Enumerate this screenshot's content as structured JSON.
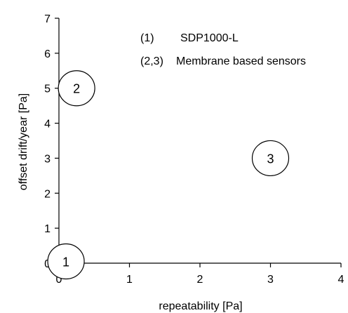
{
  "chart_data": {
    "type": "scatter",
    "title": "",
    "xlabel": "repeatability [Pa]",
    "ylabel": "offset drift/year [Pa]",
    "xlim": [
      0,
      4
    ],
    "ylim": [
      0,
      7
    ],
    "x_ticks": [
      "0",
      "1",
      "2",
      "3",
      "4"
    ],
    "y_ticks": [
      "0",
      "1",
      "2",
      "3",
      "4",
      "5",
      "6",
      "7"
    ],
    "grid": false,
    "series": [
      {
        "points": [
          {
            "label": "1",
            "x": 0.1,
            "y": 0.05
          },
          {
            "label": "2",
            "x": 0.25,
            "y": 5.0
          },
          {
            "label": "3",
            "x": 3.0,
            "y": 3.0
          }
        ]
      }
    ],
    "annotations": [
      {
        "number": "(1)",
        "text": "SDP1000-L"
      },
      {
        "number": "(2,3)",
        "text": "Membrane based sensors"
      }
    ],
    "marker_style": "open-circle",
    "colors": {
      "axis": "#000000",
      "marker_stroke": "#000000",
      "marker_fill": "#ffffff"
    }
  }
}
